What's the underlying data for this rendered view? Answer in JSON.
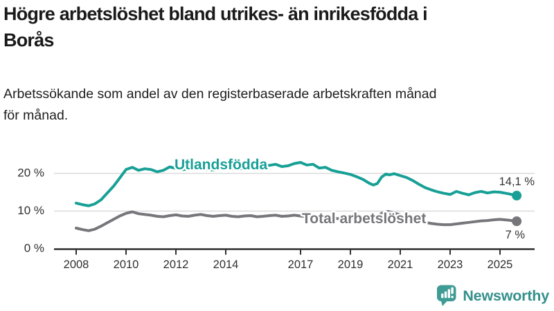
{
  "header": {
    "title_line1": "Högre arbetslöshet bland utrikes- än inrikesfödda i",
    "title_line2": "Borås",
    "subtitle_line1": "Arbetssökande som andel av den registerbaserade arbetskraften månad",
    "subtitle_line2": "för månad."
  },
  "footer": {
    "brand": "Newsworthy",
    "logo_icon": "newsworthy-speech-bubble-bar-chart-icon"
  },
  "colors": {
    "foreign_born_line": "#18a096",
    "total_line": "#76767b",
    "axis": "#2f2f2f",
    "grid": "#d8d8d8",
    "value_label": "#333333",
    "brand": "#34908b",
    "logo_fill": "#3f9c95"
  },
  "chart_data": {
    "type": "line",
    "title": "Högre arbetslöshet bland utrikes- än inrikesfödda i Borås",
    "subtitle": "Arbetssökande som andel av den registerbaserade arbetskraften månad för månad.",
    "xlabel": "",
    "ylabel": "",
    "x_unit": "year (monthly data)",
    "y_unit": "percent",
    "xlim": [
      2007.1,
      2026.5
    ],
    "ylim": [
      0,
      24.5
    ],
    "grid": "horizontal",
    "legend_position": "inline-labels",
    "x_tick_labels": [
      "2008",
      "2010",
      "2012",
      "2014",
      "2017",
      "2019",
      "2021",
      "2023",
      "2025"
    ],
    "x_ticks": [
      2008,
      2010,
      2012,
      2014,
      2017,
      2019,
      2021,
      2023,
      2025
    ],
    "y_ticks": [
      0,
      10,
      20
    ],
    "y_tick_labels": [
      "0 %",
      "10 %",
      "20 %"
    ],
    "series": [
      {
        "name": "Utlandsfödda",
        "color": "#18a096",
        "end_label": "14,1 %",
        "points": [
          [
            2008.0,
            12.1
          ],
          [
            2008.25,
            11.7
          ],
          [
            2008.5,
            11.4
          ],
          [
            2008.75,
            11.9
          ],
          [
            2009.0,
            13.0
          ],
          [
            2009.25,
            14.8
          ],
          [
            2009.5,
            16.6
          ],
          [
            2009.75,
            18.8
          ],
          [
            2010.0,
            21.0
          ],
          [
            2010.25,
            21.6
          ],
          [
            2010.5,
            20.8
          ],
          [
            2010.75,
            21.2
          ],
          [
            2011.0,
            21.0
          ],
          [
            2011.25,
            20.4
          ],
          [
            2011.5,
            20.8
          ],
          [
            2011.75,
            21.7
          ],
          [
            2012.0,
            21.3
          ],
          [
            2012.25,
            21.0
          ],
          [
            2012.5,
            21.1
          ],
          [
            2012.75,
            21.4
          ],
          [
            2013.0,
            21.4
          ],
          [
            2013.25,
            21.0
          ],
          [
            2013.5,
            20.9
          ],
          [
            2013.75,
            21.2
          ],
          [
            2014.0,
            21.6
          ],
          [
            2014.25,
            21.3
          ],
          [
            2014.5,
            21.0
          ],
          [
            2014.75,
            21.5
          ],
          [
            2015.0,
            21.9
          ],
          [
            2015.25,
            22.1
          ],
          [
            2015.5,
            22.3
          ],
          [
            2015.75,
            22.1
          ],
          [
            2016.0,
            22.4
          ],
          [
            2016.25,
            21.8
          ],
          [
            2016.5,
            22.0
          ],
          [
            2016.75,
            22.6
          ],
          [
            2017.0,
            22.9
          ],
          [
            2017.25,
            22.2
          ],
          [
            2017.5,
            22.4
          ],
          [
            2017.75,
            21.4
          ],
          [
            2018.0,
            21.6
          ],
          [
            2018.25,
            20.8
          ],
          [
            2018.5,
            20.4
          ],
          [
            2018.75,
            20.1
          ],
          [
            2019.0,
            19.7
          ],
          [
            2019.25,
            19.1
          ],
          [
            2019.5,
            18.4
          ],
          [
            2019.75,
            17.4
          ],
          [
            2019.92,
            16.9
          ],
          [
            2020.08,
            17.3
          ],
          [
            2020.25,
            19.0
          ],
          [
            2020.42,
            19.8
          ],
          [
            2020.58,
            19.6
          ],
          [
            2020.75,
            19.9
          ],
          [
            2021.0,
            19.4
          ],
          [
            2021.25,
            18.9
          ],
          [
            2021.5,
            18.1
          ],
          [
            2021.75,
            17.1
          ],
          [
            2022.0,
            16.2
          ],
          [
            2022.25,
            15.6
          ],
          [
            2022.5,
            15.1
          ],
          [
            2022.75,
            14.7
          ],
          [
            2023.0,
            14.4
          ],
          [
            2023.25,
            15.2
          ],
          [
            2023.5,
            14.7
          ],
          [
            2023.75,
            14.3
          ],
          [
            2024.0,
            14.9
          ],
          [
            2024.25,
            15.2
          ],
          [
            2024.5,
            14.8
          ],
          [
            2024.75,
            15.1
          ],
          [
            2025.0,
            15.0
          ],
          [
            2025.33,
            14.6
          ],
          [
            2025.67,
            14.1
          ]
        ]
      },
      {
        "name": "Total arbetslöshet",
        "color": "#76767b",
        "end_label": "7 %",
        "points": [
          [
            2008.0,
            5.5
          ],
          [
            2008.25,
            5.1
          ],
          [
            2008.5,
            4.8
          ],
          [
            2008.75,
            5.2
          ],
          [
            2009.0,
            6.0
          ],
          [
            2009.25,
            6.9
          ],
          [
            2009.5,
            7.8
          ],
          [
            2009.75,
            8.7
          ],
          [
            2010.0,
            9.4
          ],
          [
            2010.25,
            9.8
          ],
          [
            2010.5,
            9.3
          ],
          [
            2010.75,
            9.1
          ],
          [
            2011.0,
            8.9
          ],
          [
            2011.25,
            8.6
          ],
          [
            2011.5,
            8.5
          ],
          [
            2011.75,
            8.8
          ],
          [
            2012.0,
            9.0
          ],
          [
            2012.25,
            8.7
          ],
          [
            2012.5,
            8.6
          ],
          [
            2012.75,
            8.9
          ],
          [
            2013.0,
            9.1
          ],
          [
            2013.25,
            8.8
          ],
          [
            2013.5,
            8.6
          ],
          [
            2013.75,
            8.8
          ],
          [
            2014.0,
            8.9
          ],
          [
            2014.25,
            8.6
          ],
          [
            2014.5,
            8.5
          ],
          [
            2014.75,
            8.7
          ],
          [
            2015.0,
            8.8
          ],
          [
            2015.25,
            8.5
          ],
          [
            2015.5,
            8.6
          ],
          [
            2015.75,
            8.8
          ],
          [
            2016.0,
            8.9
          ],
          [
            2016.25,
            8.6
          ],
          [
            2016.5,
            8.7
          ],
          [
            2016.75,
            8.9
          ],
          [
            2017.0,
            8.7
          ],
          [
            2017.25,
            8.4
          ],
          [
            2017.5,
            8.5
          ],
          [
            2017.75,
            8.3
          ],
          [
            2018.0,
            8.4
          ],
          [
            2018.25,
            8.1
          ],
          [
            2018.5,
            8.0
          ],
          [
            2018.75,
            8.2
          ],
          [
            2019.0,
            8.1
          ],
          [
            2019.25,
            7.9
          ],
          [
            2019.5,
            7.8
          ],
          [
            2019.75,
            7.7
          ],
          [
            2020.0,
            8.1
          ],
          [
            2020.25,
            9.4
          ],
          [
            2020.5,
            9.9
          ],
          [
            2020.75,
            9.5
          ],
          [
            2021.0,
            9.0
          ],
          [
            2021.25,
            8.4
          ],
          [
            2021.5,
            7.9
          ],
          [
            2021.75,
            7.4
          ],
          [
            2022.0,
            7.0
          ],
          [
            2022.25,
            6.7
          ],
          [
            2022.5,
            6.5
          ],
          [
            2022.75,
            6.4
          ],
          [
            2023.0,
            6.4
          ],
          [
            2023.25,
            6.6
          ],
          [
            2023.5,
            6.8
          ],
          [
            2023.75,
            7.0
          ],
          [
            2024.0,
            7.2
          ],
          [
            2024.25,
            7.4
          ],
          [
            2024.5,
            7.5
          ],
          [
            2024.75,
            7.7
          ],
          [
            2025.0,
            7.8
          ],
          [
            2025.33,
            7.6
          ],
          [
            2025.67,
            7.3
          ]
        ]
      }
    ]
  }
}
